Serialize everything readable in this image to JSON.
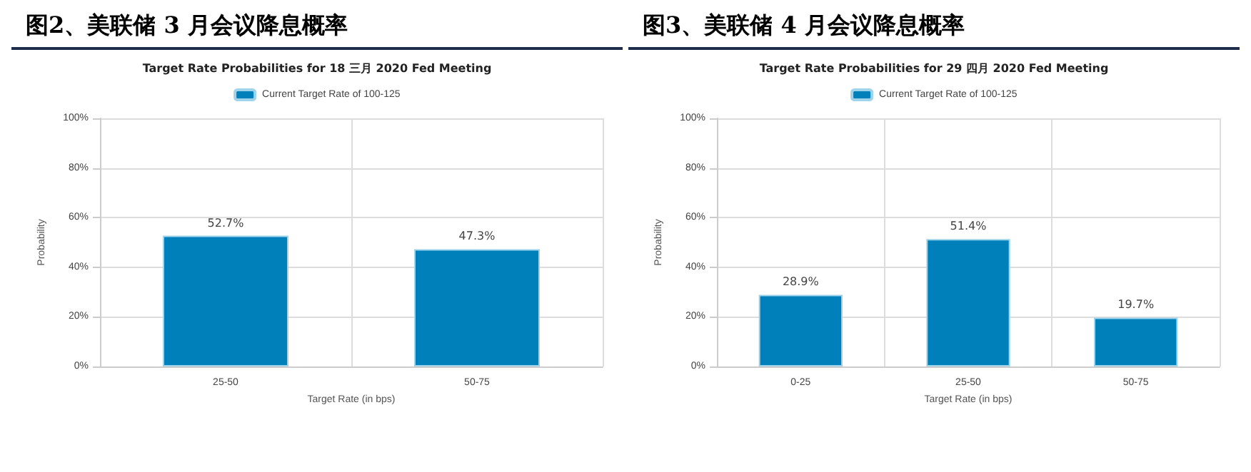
{
  "chart_data": [
    {
      "type": "bar",
      "title": "图2、美联储 3 月会议降息概率",
      "subtitle": "Target Rate Probabilities for 18 三月 2020 Fed Meeting",
      "xlabel": "Target Rate (in bps)",
      "ylabel": "Probability",
      "categories": [
        "25-50",
        "50-75"
      ],
      "series": [
        {
          "name": "Current Target Rate of 100-125",
          "color": "#0080bb",
          "values": [
            52.7,
            47.3
          ],
          "value_labels": [
            "52.7%",
            "47.3%"
          ]
        }
      ],
      "ylim": [
        0,
        100
      ],
      "yticks": [
        {
          "value": 0,
          "label": "0%"
        },
        {
          "value": 20,
          "label": "20%"
        },
        {
          "value": 40,
          "label": "40%"
        },
        {
          "value": 60,
          "label": "60%"
        },
        {
          "value": 80,
          "label": "80%"
        },
        {
          "value": 100,
          "label": "100%"
        }
      ],
      "grid": true,
      "legend": "top"
    },
    {
      "type": "bar",
      "title": "图3、美联储 4 月会议降息概率",
      "subtitle": "Target Rate Probabilities for 29 四月 2020 Fed Meeting",
      "xlabel": "Target Rate (in bps)",
      "ylabel": "Probability",
      "categories": [
        "0-25",
        "25-50",
        "50-75"
      ],
      "series": [
        {
          "name": "Current Target Rate of 100-125",
          "color": "#0080bb",
          "values": [
            28.9,
            51.4,
            19.7
          ],
          "value_labels": [
            "28.9%",
            "51.4%",
            "19.7%"
          ]
        }
      ],
      "ylim": [
        0,
        100
      ],
      "yticks": [
        {
          "value": 0,
          "label": "0%"
        },
        {
          "value": 20,
          "label": "20%"
        },
        {
          "value": 40,
          "label": "40%"
        },
        {
          "value": 60,
          "label": "60%"
        },
        {
          "value": 80,
          "label": "80%"
        },
        {
          "value": 100,
          "label": "100%"
        }
      ],
      "grid": true,
      "legend": "top"
    }
  ]
}
